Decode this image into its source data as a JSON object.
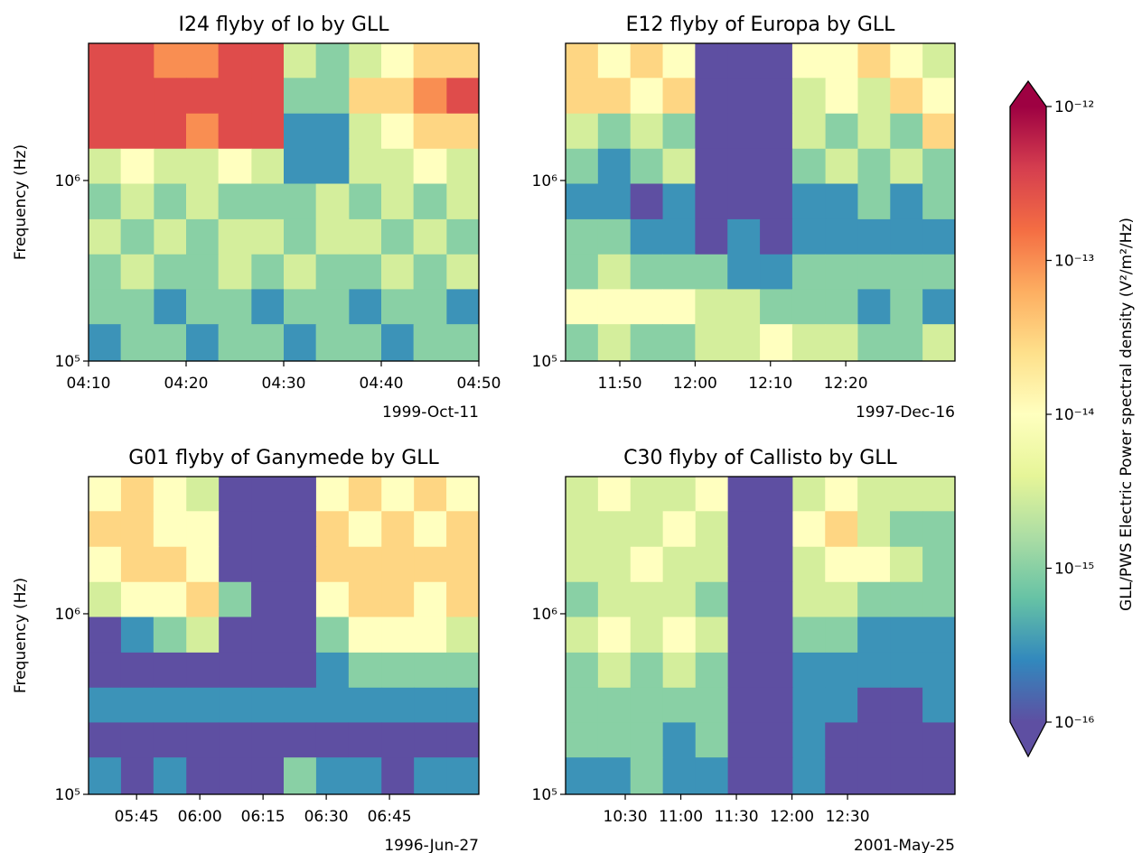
{
  "chart_data": [
    {
      "type": "heatmap",
      "title": "I24 flyby of Io by GLL",
      "ylabel": "Frequency (Hz)",
      "annotation": "1999-Oct-11",
      "xlim": [
        250,
        290
      ],
      "xticks": [
        {
          "value": 250,
          "label": "04:10"
        },
        {
          "value": 260,
          "label": "04:20"
        },
        {
          "value": 270,
          "label": "04:30"
        },
        {
          "value": 280,
          "label": "04:40"
        },
        {
          "value": 290,
          "label": "04:50"
        }
      ],
      "ylim": [
        100000,
        5750000
      ],
      "ylog": true,
      "yticks": [
        {
          "value": 100000,
          "label": "10⁵"
        },
        {
          "value": 1000000,
          "label": "10⁶"
        }
      ],
      "x": [
        250,
        253.3,
        256.7,
        260,
        263.3,
        266.7,
        270,
        273.3,
        276.7,
        280,
        283.3,
        286.7,
        290
      ],
      "y": [
        5750000,
        3700000,
        2350000,
        1500000,
        960000,
        610000,
        390000,
        250000,
        160000,
        100000
      ],
      "z": [
        [
          3e-13,
          3e-13,
          1e-13,
          1e-13,
          3e-13,
          3e-13,
          3e-15,
          1e-15,
          3e-15,
          1e-14,
          3e-14,
          3e-14
        ],
        [
          3e-13,
          3e-13,
          3e-13,
          3e-13,
          3e-13,
          3e-13,
          1e-15,
          1e-15,
          3e-14,
          3e-14,
          1e-13,
          3e-13
        ],
        [
          3e-13,
          3e-13,
          3e-13,
          1e-13,
          3e-13,
          3e-13,
          3e-16,
          3e-16,
          3e-15,
          1e-14,
          3e-14,
          3e-14
        ],
        [
          3e-15,
          1e-14,
          3e-15,
          3e-15,
          1e-14,
          3e-15,
          3e-16,
          3e-16,
          3e-15,
          3e-15,
          1e-14,
          3e-15
        ],
        [
          1e-15,
          3e-15,
          1e-15,
          3e-15,
          1e-15,
          1e-15,
          1e-15,
          3e-15,
          1e-15,
          3e-15,
          1e-15,
          3e-15
        ],
        [
          3e-15,
          1e-15,
          3e-15,
          1e-15,
          3e-15,
          3e-15,
          1e-15,
          3e-15,
          3e-15,
          1e-15,
          3e-15,
          1e-15
        ],
        [
          1e-15,
          3e-15,
          1e-15,
          1e-15,
          3e-15,
          1e-15,
          3e-15,
          1e-15,
          1e-15,
          3e-15,
          1e-15,
          3e-15
        ],
        [
          1e-15,
          1e-15,
          3e-16,
          1e-15,
          1e-15,
          3e-16,
          1e-15,
          1e-15,
          3e-16,
          1e-15,
          1e-15,
          3e-16
        ],
        [
          3e-16,
          1e-15,
          1e-15,
          3e-16,
          1e-15,
          1e-15,
          3e-16,
          1e-15,
          1e-15,
          3e-16,
          1e-15,
          1e-15
        ]
      ]
    },
    {
      "type": "heatmap",
      "title": "E12 flyby of Europa by GLL",
      "annotation": "1997-Dec-16",
      "xlim": [
        702.8,
        754.5
      ],
      "xticks": [
        {
          "value": 710,
          "label": "11:50"
        },
        {
          "value": 720,
          "label": "12:00"
        },
        {
          "value": 730,
          "label": "12:10"
        },
        {
          "value": 740,
          "label": "12:20"
        }
      ],
      "ylim": [
        100000,
        5750000
      ],
      "ylog": true,
      "yticks": [
        {
          "value": 100000,
          "label": "10⁵"
        },
        {
          "value": 1000000,
          "label": "10⁶"
        }
      ],
      "x": [
        702.8,
        707.1,
        711.4,
        715.7,
        720,
        724.3,
        728.6,
        732.9,
        737.3,
        741.6,
        745.9,
        750.2,
        754.5
      ],
      "y": [
        5750000,
        3700000,
        2350000,
        1500000,
        960000,
        610000,
        390000,
        250000,
        160000,
        100000
      ],
      "z": [
        [
          3e-14,
          1e-14,
          3e-14,
          1e-14,
          1e-16,
          1e-16,
          1e-16,
          1e-14,
          1e-14,
          3e-14,
          1e-14,
          3e-15
        ],
        [
          3e-14,
          3e-14,
          1e-14,
          3e-14,
          1e-16,
          1e-16,
          1e-16,
          3e-15,
          1e-14,
          3e-15,
          3e-14,
          1e-14
        ],
        [
          3e-15,
          1e-15,
          3e-15,
          1e-15,
          1e-16,
          1e-16,
          1e-16,
          3e-15,
          1e-15,
          3e-15,
          1e-15,
          3e-14
        ],
        [
          1e-15,
          3e-16,
          1e-15,
          3e-15,
          1e-16,
          1e-16,
          1e-16,
          1e-15,
          3e-15,
          1e-15,
          3e-15,
          1e-15
        ],
        [
          3e-16,
          3e-16,
          1e-16,
          3e-16,
          1e-16,
          1e-16,
          1e-16,
          3e-16,
          3e-16,
          1e-15,
          3e-16,
          1e-15
        ],
        [
          1e-15,
          1e-15,
          3e-16,
          3e-16,
          1e-16,
          3e-16,
          1e-16,
          3e-16,
          3e-16,
          3e-16,
          3e-16,
          3e-16
        ],
        [
          1e-15,
          3e-15,
          1e-15,
          1e-15,
          1e-15,
          3e-16,
          3e-16,
          1e-15,
          1e-15,
          1e-15,
          1e-15,
          1e-15
        ],
        [
          1e-14,
          1e-14,
          1e-14,
          1e-14,
          3e-15,
          3e-15,
          1e-15,
          1e-15,
          1e-15,
          3e-16,
          1e-15,
          3e-16
        ],
        [
          1e-15,
          3e-15,
          1e-15,
          1e-15,
          3e-15,
          3e-15,
          1e-14,
          3e-15,
          3e-15,
          1e-15,
          1e-15,
          3e-15
        ]
      ]
    },
    {
      "type": "heatmap",
      "title": "G01 flyby of Ganymede by GLL",
      "ylabel": "Frequency (Hz)",
      "annotation": "1996-Jun-27",
      "xlim": [
        333.6,
        426.2
      ],
      "xticks": [
        {
          "value": 345,
          "label": "05:45"
        },
        {
          "value": 360,
          "label": "06:00"
        },
        {
          "value": 375,
          "label": "06:15"
        },
        {
          "value": 390,
          "label": "06:30"
        },
        {
          "value": 405,
          "label": "06:45"
        }
      ],
      "ylim": [
        100000,
        5750000
      ],
      "ylog": true,
      "yticks": [
        {
          "value": 100000,
          "label": "10⁵"
        },
        {
          "value": 1000000,
          "label": "10⁶"
        }
      ],
      "x": [
        333.6,
        341.3,
        349,
        356.8,
        364.5,
        372.2,
        379.9,
        387.6,
        395.3,
        403.1,
        410.8,
        418.5,
        426.2
      ],
      "y": [
        5750000,
        3700000,
        2350000,
        1500000,
        960000,
        610000,
        390000,
        250000,
        160000,
        100000
      ],
      "z": [
        [
          1e-14,
          3e-14,
          1e-14,
          3e-15,
          1e-16,
          1e-16,
          1e-16,
          1e-14,
          3e-14,
          1e-14,
          3e-14,
          1e-14
        ],
        [
          3e-14,
          3e-14,
          1e-14,
          1e-14,
          1e-16,
          1e-16,
          1e-16,
          3e-14,
          1e-14,
          3e-14,
          1e-14,
          3e-14
        ],
        [
          1e-14,
          3e-14,
          3e-14,
          1e-14,
          1e-16,
          1e-16,
          1e-16,
          3e-14,
          3e-14,
          3e-14,
          3e-14,
          3e-14
        ],
        [
          3e-15,
          1e-14,
          1e-14,
          3e-14,
          1e-15,
          1e-16,
          1e-16,
          1e-14,
          3e-14,
          3e-14,
          1e-14,
          3e-14
        ],
        [
          1e-16,
          3e-16,
          1e-15,
          3e-15,
          1e-16,
          1e-16,
          1e-16,
          1e-15,
          1e-14,
          1e-14,
          1e-14,
          3e-15
        ],
        [
          1e-16,
          1e-16,
          1e-16,
          1e-16,
          1e-16,
          1e-16,
          1e-16,
          3e-16,
          1e-15,
          1e-15,
          1e-15,
          1e-15
        ],
        [
          3e-16,
          3e-16,
          3e-16,
          3e-16,
          3e-16,
          3e-16,
          3e-16,
          3e-16,
          3e-16,
          3e-16,
          3e-16,
          3e-16
        ],
        [
          1e-16,
          1e-16,
          1e-16,
          1e-16,
          1e-16,
          1e-16,
          1e-16,
          1e-16,
          1e-16,
          1e-16,
          1e-16,
          1e-16
        ],
        [
          3e-16,
          1e-16,
          3e-16,
          1e-16,
          1e-16,
          1e-16,
          1e-15,
          3e-16,
          3e-16,
          1e-16,
          3e-16,
          3e-16
        ]
      ]
    },
    {
      "type": "heatmap",
      "title": "C30 flyby of Callisto by GLL",
      "annotation": "2001-May-25",
      "xlim": [
        597.8,
        808
      ],
      "xticks": [
        {
          "value": 630,
          "label": "10:30"
        },
        {
          "value": 660,
          "label": "11:00"
        },
        {
          "value": 690,
          "label": "11:30"
        },
        {
          "value": 720,
          "label": "12:00"
        },
        {
          "value": 750,
          "label": "12:30"
        }
      ],
      "ylim": [
        100000,
        5750000
      ],
      "ylog": true,
      "yticks": [
        {
          "value": 100000,
          "label": "10⁵"
        },
        {
          "value": 1000000,
          "label": "10⁶"
        }
      ],
      "x": [
        597.8,
        615.3,
        632.8,
        650.3,
        667.9,
        685.4,
        702.9,
        720.4,
        737.9,
        755.4,
        772.9,
        790.5,
        808
      ],
      "y": [
        5750000,
        3700000,
        2350000,
        1500000,
        960000,
        610000,
        390000,
        250000,
        160000,
        100000
      ],
      "z": [
        [
          3e-15,
          1e-14,
          3e-15,
          3e-15,
          1e-14,
          1e-16,
          1e-16,
          3e-15,
          1e-14,
          3e-15,
          3e-15,
          3e-15
        ],
        [
          3e-15,
          3e-15,
          3e-15,
          1e-14,
          3e-15,
          1e-16,
          1e-16,
          1e-14,
          3e-14,
          3e-15,
          1e-15,
          1e-15
        ],
        [
          3e-15,
          3e-15,
          1e-14,
          3e-15,
          3e-15,
          1e-16,
          1e-16,
          3e-15,
          1e-14,
          1e-14,
          3e-15,
          1e-15
        ],
        [
          1e-15,
          3e-15,
          3e-15,
          3e-15,
          1e-15,
          1e-16,
          1e-16,
          3e-15,
          3e-15,
          1e-15,
          1e-15,
          1e-15
        ],
        [
          3e-15,
          1e-14,
          3e-15,
          1e-14,
          3e-15,
          1e-16,
          1e-16,
          1e-15,
          1e-15,
          3e-16,
          3e-16,
          3e-16
        ],
        [
          1e-15,
          3e-15,
          1e-15,
          3e-15,
          1e-15,
          1e-16,
          1e-16,
          3e-16,
          3e-16,
          3e-16,
          3e-16,
          3e-16
        ],
        [
          1e-15,
          1e-15,
          1e-15,
          1e-15,
          1e-15,
          1e-16,
          1e-16,
          3e-16,
          3e-16,
          1e-16,
          1e-16,
          3e-16
        ],
        [
          1e-15,
          1e-15,
          1e-15,
          3e-16,
          1e-15,
          1e-16,
          1e-16,
          3e-16,
          1e-16,
          1e-16,
          1e-16,
          1e-16
        ],
        [
          3e-16,
          3e-16,
          1e-15,
          3e-16,
          3e-16,
          1e-16,
          1e-16,
          3e-16,
          1e-16,
          1e-16,
          1e-16,
          1e-16
        ]
      ]
    },
    {
      "type": "colorbar",
      "label": "GLL/PWS Electric Power spectral density (V²/m²/Hz)",
      "zlim": [
        1e-16,
        1e-12
      ],
      "log": true,
      "colormap": "Spectral_r",
      "extend": "both",
      "zticks": [
        {
          "value": 1e-16,
          "label": "10⁻¹⁶"
        },
        {
          "value": 1e-15,
          "label": "10⁻¹⁵"
        },
        {
          "value": 1e-14,
          "label": "10⁻¹⁴"
        },
        {
          "value": 1e-13,
          "label": "10⁻¹³"
        },
        {
          "value": 1e-12,
          "label": "10⁻¹²"
        }
      ]
    }
  ]
}
